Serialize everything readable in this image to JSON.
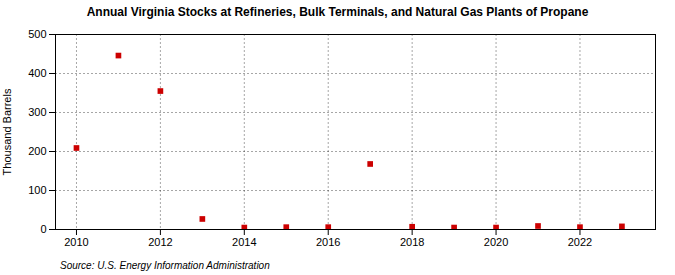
{
  "chart_data": {
    "type": "scatter",
    "title": "Annual Virginia Stocks at Refineries, Bulk Terminals, and Natural Gas Plants of Propane",
    "ylabel": "Thousand Barrels",
    "source": "Source: U.S. Energy Information Administration",
    "x": [
      2010,
      2011,
      2012,
      2013,
      2014,
      2015,
      2016,
      2017,
      2018,
      2019,
      2020,
      2021,
      2022,
      2023
    ],
    "values": [
      209,
      446,
      355,
      27,
      5,
      6,
      6,
      168,
      7,
      5,
      5,
      9,
      6,
      8
    ],
    "color": "#cc0000",
    "marker": "square",
    "xlim": [
      2009.5,
      2023.8
    ],
    "ylim": [
      0,
      500
    ],
    "xticks": [
      2010,
      2012,
      2014,
      2016,
      2018,
      2020,
      2022
    ],
    "yticks": [
      0,
      100,
      200,
      300,
      400,
      500
    ],
    "grid": true
  }
}
